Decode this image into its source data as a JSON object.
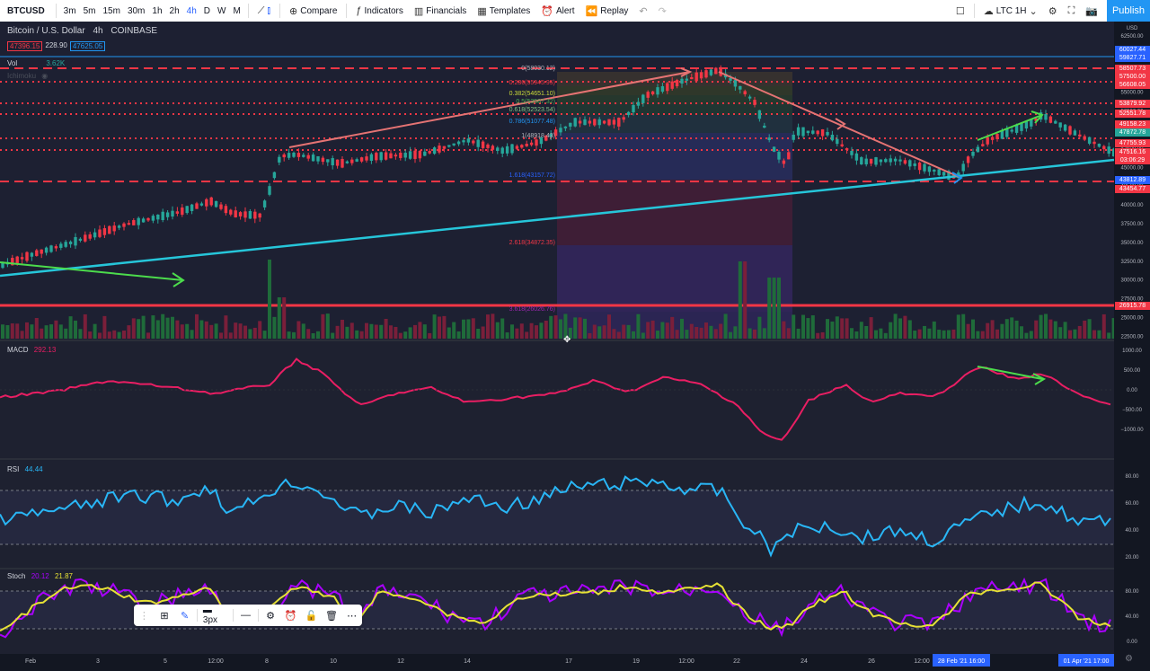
{
  "topbar": {
    "symbol": "BTCUSD",
    "intervals": [
      "3m",
      "5m",
      "15m",
      "30m",
      "1h",
      "2h",
      "4h",
      "D",
      "W",
      "M"
    ],
    "active_interval": "4h",
    "compare": "Compare",
    "indicators": "Indicators",
    "financials": "Financials",
    "templates": "Templates",
    "alert": "Alert",
    "replay": "Replay",
    "layout": "LTC 1H",
    "publish": "Publish"
  },
  "legend": {
    "title": "Bitcoin / U.S. Dollar",
    "interval": "4h",
    "exchange": "COINBASE",
    "bid": "47396.15",
    "spread": "228.90",
    "ask": "47625.05",
    "vol_label": "Vol",
    "vol_value": "3.62K",
    "ichimoku_label": "Ichimoku"
  },
  "macd": {
    "label": "MACD",
    "value": "292.13",
    "ticks": [
      "1000.00",
      "500.00",
      "0.00",
      "−500.00",
      "−1000.00"
    ]
  },
  "rsi": {
    "label": "RSI",
    "value": "44.44",
    "ticks": [
      "80.00",
      "60.00",
      "40.00",
      "20.00"
    ]
  },
  "stoch": {
    "label": "Stoch",
    "k": "20.12",
    "d": "21.87",
    "ticks": [
      "80.00",
      "40.00",
      "0.00"
    ]
  },
  "price_axis": {
    "currency": "USD",
    "ticks": [
      "62500.00",
      "60000.00",
      "57500.00",
      "55000.00",
      "52500.00",
      "50000.00",
      "47500.00",
      "45000.00",
      "42500.00",
      "40000.00",
      "37500.00",
      "35000.00",
      "32500.00",
      "30000.00",
      "27500.00",
      "25000.00",
      "22500.00"
    ],
    "boxes": [
      {
        "text": "60027.44",
        "color": "#2962ff"
      },
      {
        "text": "59827.71",
        "color": "#2962ff"
      },
      {
        "text": "58507.73",
        "color": "#f23645"
      },
      {
        "text": "57500.00",
        "color": "#f23645"
      },
      {
        "text": "56608.05",
        "color": "#f23645"
      },
      {
        "text": "53879.92",
        "color": "#f23645"
      },
      {
        "text": "52551.78",
        "color": "#f23645"
      },
      {
        "text": "49158.23",
        "color": "#f23645"
      },
      {
        "text": "47872.78",
        "color": "#26a69a"
      },
      {
        "text": "47755.93",
        "color": "#f23645"
      },
      {
        "text": "47516.16",
        "color": "#f23645"
      },
      {
        "text": "03:06:29",
        "color": "#f23645"
      },
      {
        "text": "43812.89",
        "color": "#2962ff"
      },
      {
        "text": "43454.77",
        "color": "#f23645"
      },
      {
        "text": "26915.78",
        "color": "#f23645"
      }
    ]
  },
  "fib": {
    "levels": [
      {
        "text": "0(58030.12)",
        "color": "#b2b5be"
      },
      {
        "text": "0.236(55945.95)",
        "color": "#f23645"
      },
      {
        "text": "0.382(54651.10)",
        "color": "#cddc39"
      },
      {
        "text": "0.5(53587.32)",
        "color": "#4caf50"
      },
      {
        "text": "0.618(52523.54)",
        "color": "#81c784"
      },
      {
        "text": "0.786(51077.48)",
        "color": "#2196f3"
      },
      {
        "text": "1(48918.43)",
        "color": "#b2b5be"
      },
      {
        "text": "1.618(43157.72)",
        "color": "#2962ff"
      },
      {
        "text": "2.618(34872.35)",
        "color": "#f23645"
      },
      {
        "text": "3.618(26026.76)",
        "color": "#9c27b0"
      }
    ]
  },
  "time_axis": {
    "ticks": [
      "Feb",
      "3",
      "5",
      "12:00",
      "8",
      "10",
      "12",
      "14",
      "17",
      "19",
      "12:00",
      "22",
      "24",
      "26",
      "12:00",
      "3",
      "12:00"
    ],
    "crosshair_label": "28 Feb '21  16:00",
    "last_label": "01 Apr '21  17:00"
  },
  "drawing_toolbar": {
    "width_label": "3px"
  }
}
